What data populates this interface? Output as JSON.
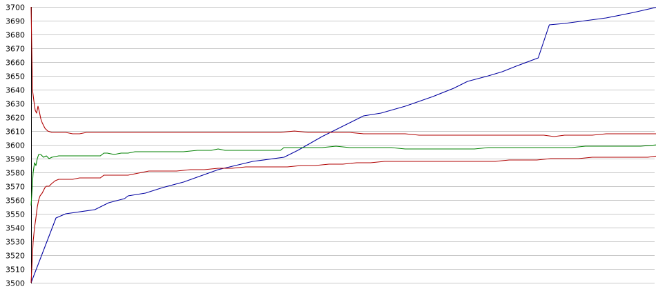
{
  "chart_data": {
    "type": "line",
    "title": "",
    "xlabel": "",
    "ylabel": "",
    "ylim": [
      3500,
      3700
    ],
    "yticks": [
      3500,
      3510,
      3520,
      3530,
      3540,
      3550,
      3560,
      3570,
      3580,
      3590,
      3600,
      3610,
      3620,
      3630,
      3640,
      3650,
      3660,
      3670,
      3680,
      3690,
      3700
    ],
    "xlim": [
      0,
      900
    ],
    "grid": true,
    "series": [
      {
        "color": "#0000a0",
        "points": [
          [
            0,
            3500
          ],
          [
            36,
            3547
          ],
          [
            50,
            3550
          ],
          [
            92,
            3553
          ],
          [
            112,
            3558
          ],
          [
            135,
            3561
          ],
          [
            140,
            3563
          ],
          [
            165,
            3565
          ],
          [
            190,
            3569
          ],
          [
            220,
            3573
          ],
          [
            270,
            3582
          ],
          [
            320,
            3588
          ],
          [
            365,
            3591
          ],
          [
            385,
            3596
          ],
          [
            420,
            3606
          ],
          [
            460,
            3616
          ],
          [
            480,
            3621
          ],
          [
            505,
            3623
          ],
          [
            540,
            3628
          ],
          [
            580,
            3635
          ],
          [
            610,
            3641
          ],
          [
            630,
            3646
          ],
          [
            660,
            3650
          ],
          [
            680,
            3653
          ],
          [
            700,
            3657
          ],
          [
            732,
            3663
          ],
          [
            748,
            3687
          ],
          [
            770,
            3688
          ],
          [
            830,
            3692
          ],
          [
            870,
            3696
          ],
          [
            905,
            3700
          ]
        ]
      },
      {
        "color": "#b00000",
        "points": [
          [
            0,
            3700
          ],
          [
            2,
            3640
          ],
          [
            4,
            3632
          ],
          [
            6,
            3625
          ],
          [
            8,
            3623
          ],
          [
            10,
            3628
          ],
          [
            12,
            3624
          ],
          [
            14,
            3619
          ],
          [
            16,
            3616
          ],
          [
            18,
            3614
          ],
          [
            20,
            3612
          ],
          [
            24,
            3610
          ],
          [
            30,
            3609
          ],
          [
            40,
            3609
          ],
          [
            50,
            3609
          ],
          [
            60,
            3608
          ],
          [
            70,
            3608
          ],
          [
            80,
            3609
          ],
          [
            90,
            3609
          ],
          [
            100,
            3609
          ],
          [
            120,
            3609
          ],
          [
            140,
            3609
          ],
          [
            160,
            3609
          ],
          [
            180,
            3609
          ],
          [
            200,
            3609
          ],
          [
            220,
            3609
          ],
          [
            240,
            3609
          ],
          [
            260,
            3609
          ],
          [
            280,
            3609
          ],
          [
            300,
            3609
          ],
          [
            320,
            3609
          ],
          [
            340,
            3609
          ],
          [
            360,
            3609
          ],
          [
            380,
            3610
          ],
          [
            400,
            3609
          ],
          [
            420,
            3609
          ],
          [
            440,
            3609
          ],
          [
            460,
            3609
          ],
          [
            480,
            3608
          ],
          [
            500,
            3608
          ],
          [
            520,
            3608
          ],
          [
            540,
            3608
          ],
          [
            560,
            3607
          ],
          [
            580,
            3607
          ],
          [
            600,
            3607
          ],
          [
            620,
            3607
          ],
          [
            640,
            3607
          ],
          [
            660,
            3607
          ],
          [
            680,
            3607
          ],
          [
            700,
            3607
          ],
          [
            720,
            3607
          ],
          [
            740,
            3607
          ],
          [
            755,
            3606
          ],
          [
            770,
            3607
          ],
          [
            790,
            3607
          ],
          [
            810,
            3607
          ],
          [
            830,
            3608
          ],
          [
            850,
            3608
          ],
          [
            870,
            3608
          ],
          [
            890,
            3608
          ],
          [
            905,
            3608
          ]
        ]
      },
      {
        "color": "#008000",
        "points": [
          [
            0,
            3556
          ],
          [
            3,
            3580
          ],
          [
            5,
            3587
          ],
          [
            7,
            3585
          ],
          [
            9,
            3590
          ],
          [
            11,
            3593
          ],
          [
            14,
            3593
          ],
          [
            18,
            3591
          ],
          [
            22,
            3592
          ],
          [
            26,
            3590
          ],
          [
            30,
            3591
          ],
          [
            40,
            3592
          ],
          [
            50,
            3592
          ],
          [
            60,
            3592
          ],
          [
            70,
            3592
          ],
          [
            80,
            3592
          ],
          [
            90,
            3592
          ],
          [
            100,
            3592
          ],
          [
            105,
            3594
          ],
          [
            110,
            3594
          ],
          [
            120,
            3593
          ],
          [
            130,
            3594
          ],
          [
            140,
            3594
          ],
          [
            150,
            3595
          ],
          [
            160,
            3595
          ],
          [
            180,
            3595
          ],
          [
            200,
            3595
          ],
          [
            220,
            3595
          ],
          [
            240,
            3596
          ],
          [
            260,
            3596
          ],
          [
            270,
            3597
          ],
          [
            280,
            3596
          ],
          [
            300,
            3596
          ],
          [
            320,
            3596
          ],
          [
            340,
            3596
          ],
          [
            360,
            3596
          ],
          [
            365,
            3598
          ],
          [
            380,
            3598
          ],
          [
            400,
            3598
          ],
          [
            420,
            3598
          ],
          [
            440,
            3599
          ],
          [
            460,
            3598
          ],
          [
            480,
            3598
          ],
          [
            500,
            3598
          ],
          [
            520,
            3598
          ],
          [
            540,
            3597
          ],
          [
            560,
            3597
          ],
          [
            580,
            3597
          ],
          [
            600,
            3597
          ],
          [
            620,
            3597
          ],
          [
            640,
            3597
          ],
          [
            660,
            3598
          ],
          [
            680,
            3598
          ],
          [
            700,
            3598
          ],
          [
            720,
            3598
          ],
          [
            740,
            3598
          ],
          [
            760,
            3598
          ],
          [
            780,
            3598
          ],
          [
            800,
            3599
          ],
          [
            820,
            3599
          ],
          [
            840,
            3599
          ],
          [
            860,
            3599
          ],
          [
            880,
            3599
          ],
          [
            905,
            3600
          ]
        ]
      },
      {
        "color": "#b00000",
        "points": [
          [
            0,
            3500
          ],
          [
            3,
            3530
          ],
          [
            5,
            3540
          ],
          [
            7,
            3547
          ],
          [
            9,
            3555
          ],
          [
            11,
            3560
          ],
          [
            13,
            3563
          ],
          [
            16,
            3565
          ],
          [
            18,
            3567
          ],
          [
            20,
            3569
          ],
          [
            22,
            3570
          ],
          [
            26,
            3570
          ],
          [
            30,
            3572
          ],
          [
            35,
            3574
          ],
          [
            40,
            3575
          ],
          [
            50,
            3575
          ],
          [
            60,
            3575
          ],
          [
            70,
            3576
          ],
          [
            80,
            3576
          ],
          [
            90,
            3576
          ],
          [
            100,
            3576
          ],
          [
            105,
            3578
          ],
          [
            110,
            3578
          ],
          [
            120,
            3578
          ],
          [
            130,
            3578
          ],
          [
            140,
            3578
          ],
          [
            150,
            3579
          ],
          [
            160,
            3580
          ],
          [
            170,
            3581
          ],
          [
            190,
            3581
          ],
          [
            210,
            3581
          ],
          [
            230,
            3582
          ],
          [
            250,
            3582
          ],
          [
            270,
            3583
          ],
          [
            290,
            3583
          ],
          [
            310,
            3584
          ],
          [
            330,
            3584
          ],
          [
            350,
            3584
          ],
          [
            370,
            3584
          ],
          [
            390,
            3585
          ],
          [
            410,
            3585
          ],
          [
            430,
            3586
          ],
          [
            450,
            3586
          ],
          [
            470,
            3587
          ],
          [
            490,
            3587
          ],
          [
            510,
            3588
          ],
          [
            530,
            3588
          ],
          [
            550,
            3588
          ],
          [
            570,
            3588
          ],
          [
            590,
            3588
          ],
          [
            610,
            3588
          ],
          [
            630,
            3588
          ],
          [
            650,
            3588
          ],
          [
            670,
            3588
          ],
          [
            690,
            3589
          ],
          [
            710,
            3589
          ],
          [
            730,
            3589
          ],
          [
            750,
            3590
          ],
          [
            770,
            3590
          ],
          [
            790,
            3590
          ],
          [
            810,
            3591
          ],
          [
            830,
            3591
          ],
          [
            850,
            3591
          ],
          [
            870,
            3591
          ],
          [
            890,
            3591
          ],
          [
            905,
            3592
          ]
        ]
      }
    ]
  }
}
